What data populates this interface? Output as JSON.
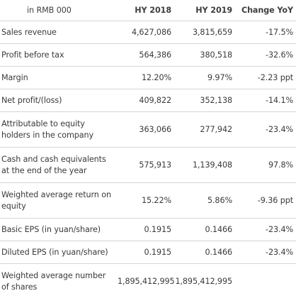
{
  "table": {
    "headers": [
      "in RMB 000",
      "HY 2018",
      "HY 2019",
      "Change YoY"
    ],
    "rows": [
      {
        "label": "Sales revenue",
        "hy2018": "4,627,086",
        "hy2019": "3,815,659",
        "change": "-17.5%"
      },
      {
        "label": "Profit before tax",
        "hy2018": "564,386",
        "hy2019": "380,518",
        "change": "-32.6%"
      },
      {
        "label": "Margin",
        "hy2018": "12.20%",
        "hy2019": "9.97%",
        "change": "-2.23 ppt"
      },
      {
        "label": "Net profit/(loss)",
        "hy2018": "409,822",
        "hy2019": "352,138",
        "change": "-14.1%"
      },
      {
        "label": "Attributable to equity holders in the company",
        "hy2018": "363,066",
        "hy2019": "277,942",
        "change": "-23.4%"
      },
      {
        "label": "Cash and cash equivalents at the end of the year",
        "hy2018": "575,913",
        "hy2019": "1,139,408",
        "change": "97.8%"
      },
      {
        "label": "Weighted average return on equity",
        "hy2018": "15.22%",
        "hy2019": "5.86%",
        "change": "-9.36 ppt"
      },
      {
        "label": "Basic EPS (in yuan/share)",
        "hy2018": "0.1915",
        "hy2019": "0.1466",
        "change": "-23.4%"
      },
      {
        "label": "Diluted EPS (in yuan/share)",
        "hy2018": "0.1915",
        "hy2019": "0.1466",
        "change": "-23.4%"
      },
      {
        "label": "Weighted average number of shares",
        "hy2018": "1,895,412,995",
        "hy2019": "1,895,412,995",
        "change": ""
      }
    ]
  }
}
